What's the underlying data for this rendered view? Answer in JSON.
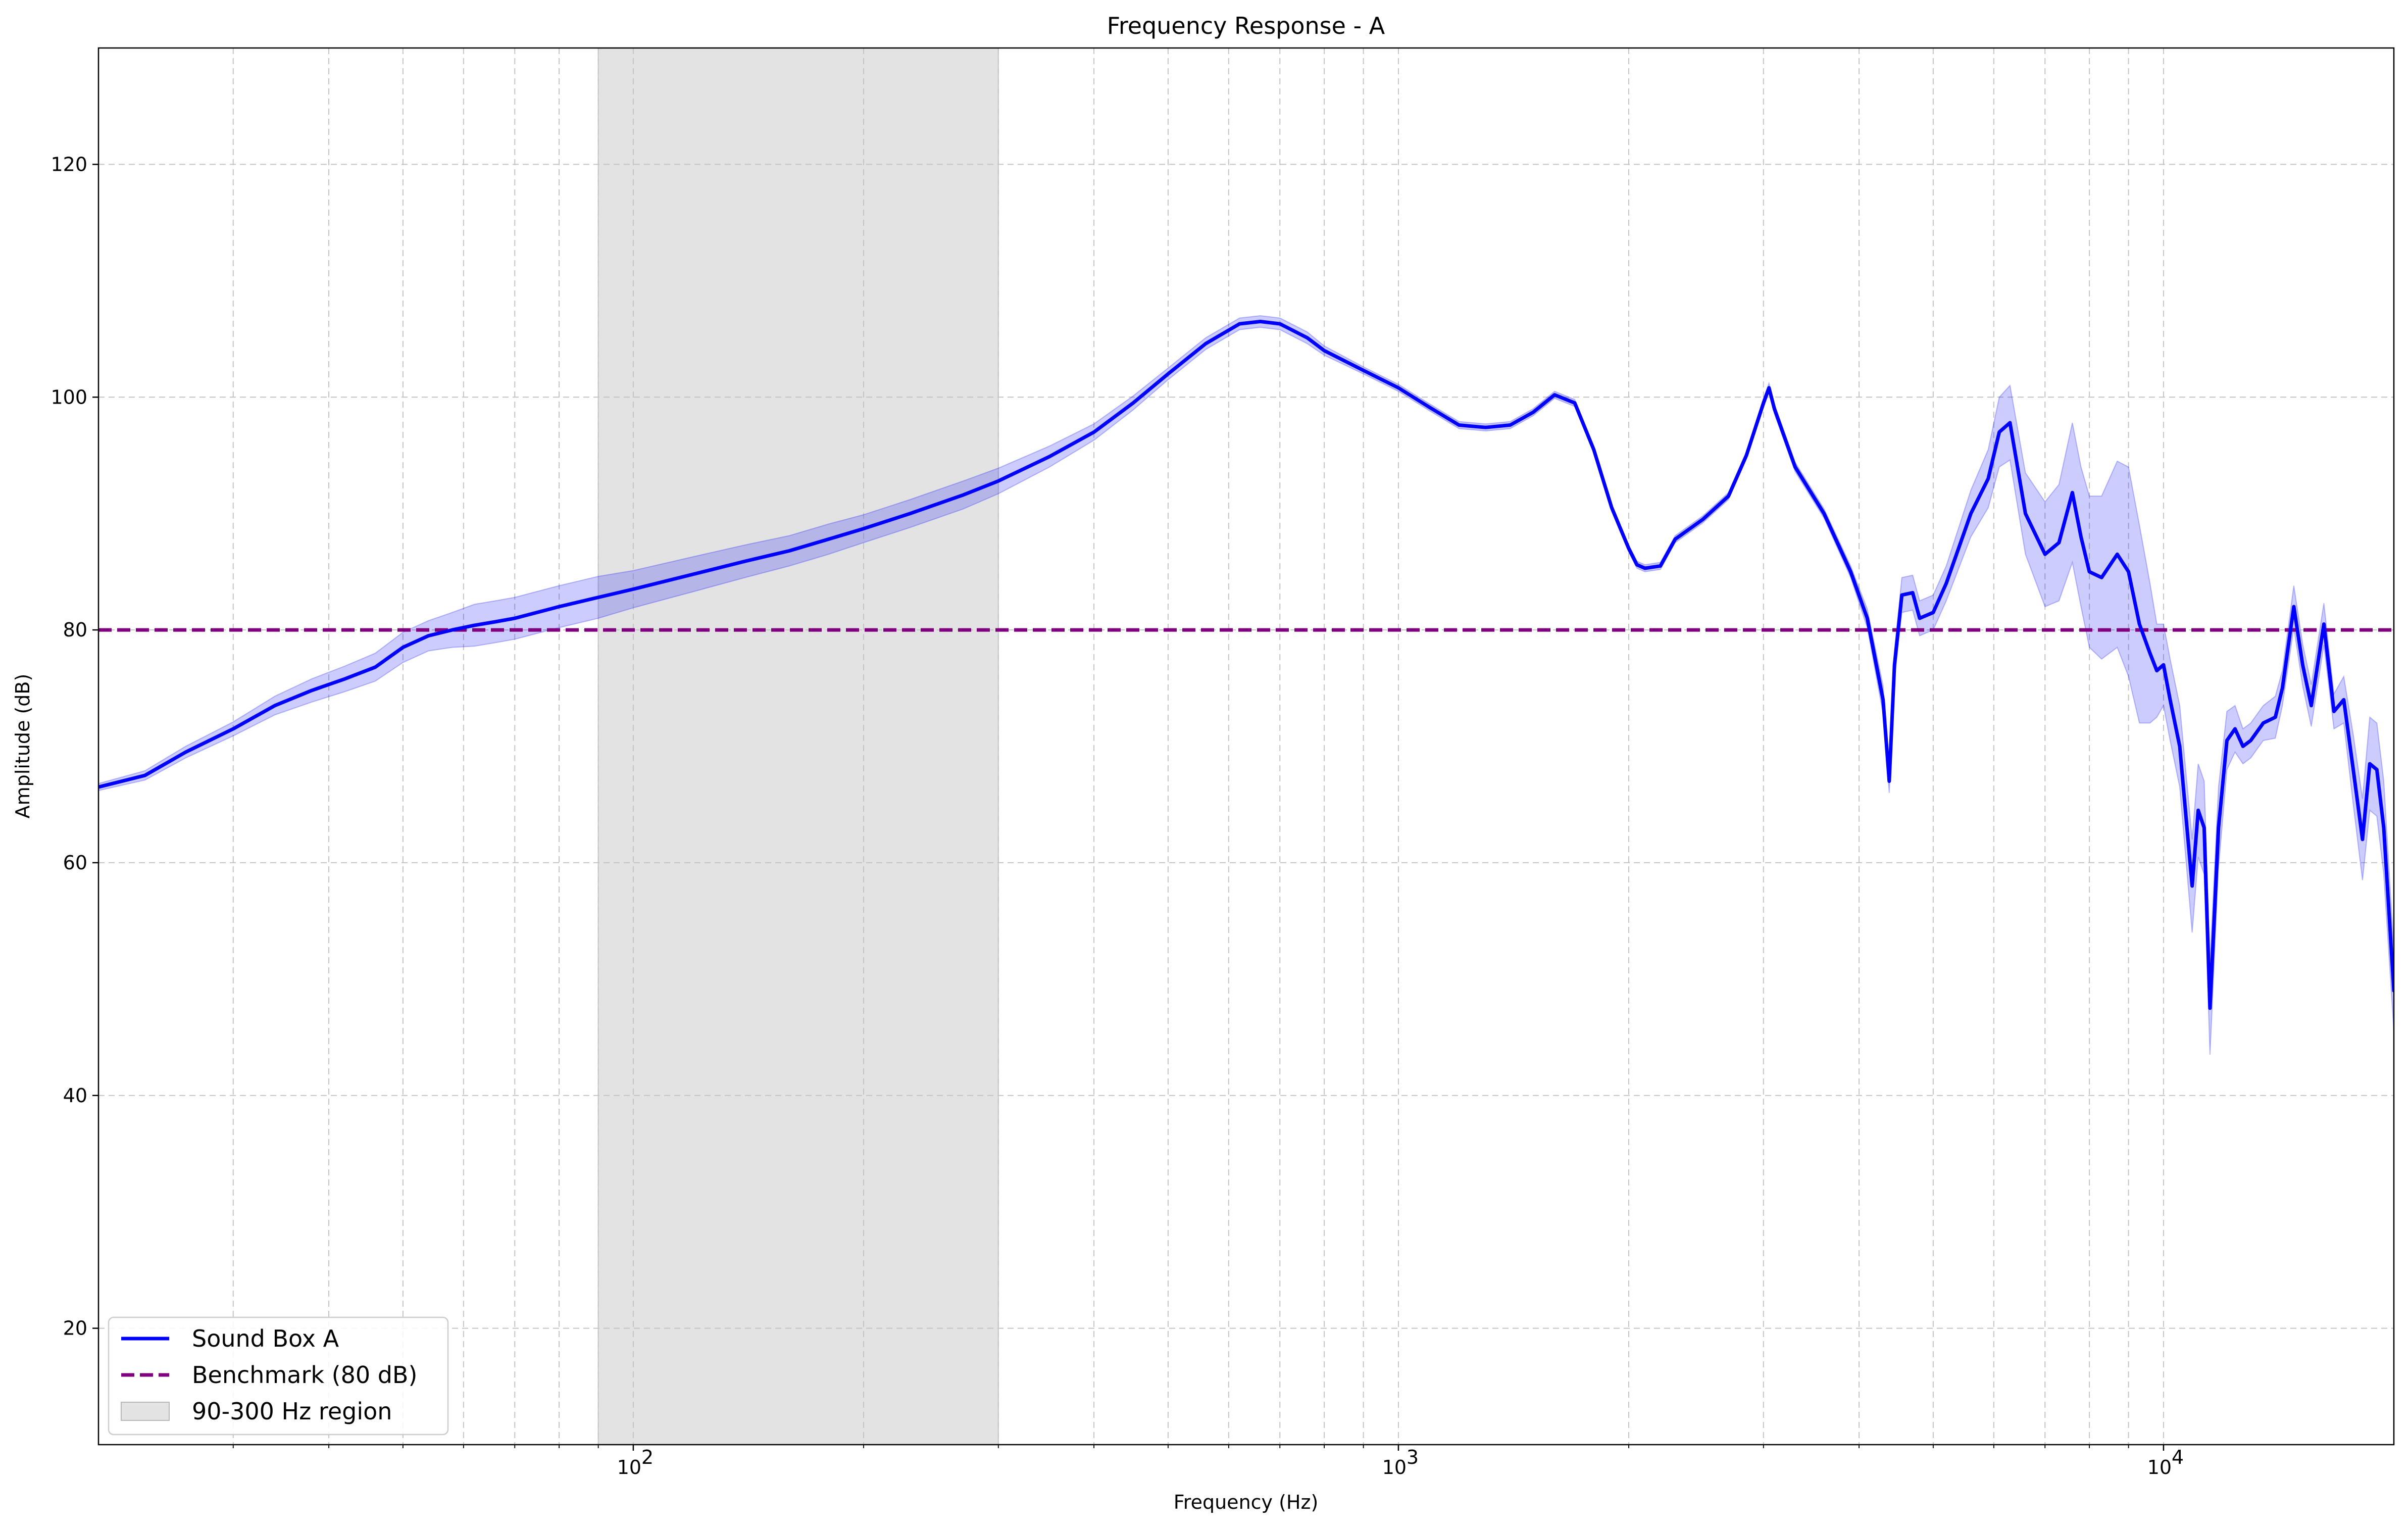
{
  "chart_data": {
    "type": "line",
    "title": "Frequency Response - A",
    "xlabel": "Frequency (Hz)",
    "ylabel": "Amplitude (dB)",
    "x_scale": "log",
    "xlim": [
      20,
      20000
    ],
    "ylim": [
      10,
      130
    ],
    "grid": true,
    "legend_position": "bottom-left",
    "x_ticks": [
      {
        "value": 100,
        "label": "10",
        "exp": "2"
      },
      {
        "value": 1000,
        "label": "10",
        "exp": "3"
      },
      {
        "value": 10000,
        "label": "10",
        "exp": "4"
      }
    ],
    "y_ticks": [
      20,
      40,
      60,
      80,
      100,
      120
    ],
    "colors": {
      "series": "#0000ff",
      "band": "#0000ff",
      "benchmark": "#800080",
      "region": "#d9d9d9"
    },
    "region": {
      "label": "90-300 Hz region",
      "x_start": 90,
      "x_end": 300
    },
    "benchmark": {
      "label": "Benchmark (80 dB)",
      "value": 80
    },
    "series": [
      {
        "name": "Sound Box A",
        "x": [
          20,
          23,
          26,
          30,
          34,
          38,
          42,
          46,
          50,
          54,
          58,
          62,
          66,
          70,
          80,
          90,
          100,
          120,
          140,
          160,
          180,
          200,
          230,
          270,
          300,
          350,
          400,
          450,
          500,
          560,
          620,
          660,
          700,
          760,
          800,
          900,
          1000,
          1100,
          1200,
          1300,
          1400,
          1500,
          1600,
          1700,
          1800,
          1900,
          2000,
          2050,
          2100,
          2200,
          2300,
          2500,
          2700,
          2850,
          3000,
          3050,
          3100,
          3300,
          3600,
          3900,
          4100,
          4300,
          4380,
          4450,
          4550,
          4700,
          4800,
          5000,
          5200,
          5600,
          5900,
          6100,
          6300,
          6600,
          7000,
          7300,
          7600,
          7800,
          8000,
          8300,
          8700,
          9000,
          9300,
          9600,
          9800,
          10000,
          10200,
          10500,
          10900,
          11100,
          11300,
          11500,
          11800,
          12100,
          12400,
          12700,
          13000,
          13500,
          14000,
          14300,
          14800,
          15200,
          15600,
          16200,
          16700,
          17200,
          17700,
          18200,
          18600,
          19000,
          19400,
          20000
        ],
        "y": [
          66.5,
          67.5,
          69.5,
          71.5,
          73.5,
          74.8,
          75.8,
          76.8,
          78.5,
          79.5,
          80.0,
          80.4,
          80.7,
          81.0,
          82.0,
          82.8,
          83.5,
          84.8,
          85.9,
          86.8,
          87.8,
          88.7,
          90.0,
          91.6,
          92.8,
          94.9,
          97.0,
          99.5,
          102.0,
          104.6,
          106.3,
          106.5,
          106.3,
          105.1,
          104.0,
          102.3,
          100.8,
          99.1,
          97.6,
          97.4,
          97.6,
          98.7,
          100.2,
          99.5,
          95.5,
          90.5,
          87.0,
          85.6,
          85.3,
          85.5,
          87.8,
          89.5,
          91.5,
          95.0,
          99.5,
          100.8,
          99.0,
          94.0,
          90.0,
          85.0,
          81.0,
          74.0,
          67.0,
          77.0,
          83.0,
          83.2,
          81.0,
          81.5,
          84.0,
          90.0,
          93.0,
          97.0,
          97.8,
          90.0,
          86.5,
          87.5,
          91.8,
          88.0,
          85.0,
          84.5,
          86.5,
          85.0,
          80.5,
          78.0,
          76.5,
          77.0,
          74.0,
          70.0,
          58.0,
          64.5,
          63.0,
          47.5,
          63.0,
          70.5,
          71.5,
          70.0,
          70.5,
          72.0,
          72.5,
          75.0,
          82.0,
          77.0,
          73.5,
          80.5,
          73.0,
          74.0,
          68.0,
          62.0,
          68.5,
          68.0,
          63.0,
          49.0
        ],
        "band_half_width": [
          0.3,
          0.4,
          0.5,
          0.6,
          0.8,
          1.0,
          1.1,
          1.2,
          1.3,
          1.3,
          1.5,
          1.8,
          1.8,
          1.8,
          1.8,
          1.8,
          1.6,
          1.5,
          1.4,
          1.3,
          1.3,
          1.2,
          1.2,
          1.2,
          1.1,
          0.9,
          0.7,
          0.6,
          0.5,
          0.5,
          0.5,
          0.5,
          0.5,
          0.5,
          0.4,
          0.3,
          0.3,
          0.3,
          0.3,
          0.3,
          0.3,
          0.3,
          0.3,
          0.3,
          0.3,
          0.3,
          0.3,
          0.3,
          0.3,
          0.3,
          0.3,
          0.3,
          0.3,
          0.3,
          0.4,
          0.4,
          0.4,
          0.4,
          0.4,
          0.5,
          0.8,
          1.2,
          1.0,
          1.2,
          1.5,
          1.5,
          1.5,
          1.5,
          1.5,
          2.0,
          2.5,
          3.0,
          3.2,
          3.5,
          4.5,
          5.0,
          6.0,
          6.0,
          6.5,
          7.0,
          8.0,
          9.0,
          8.5,
          6.0,
          4.0,
          3.5,
          3.5,
          3.5,
          4.0,
          4.0,
          4.0,
          4.0,
          3.5,
          2.5,
          2.0,
          1.5,
          1.5,
          1.5,
          1.8,
          1.5,
          1.8,
          1.8,
          1.8,
          1.8,
          1.5,
          2.0,
          3.0,
          3.5,
          4.0,
          4.0,
          4.0,
          3.5
        ]
      }
    ],
    "legend": [
      {
        "label": "Sound Box A",
        "kind": "line"
      },
      {
        "label": "Benchmark (80 dB)",
        "kind": "dashed"
      },
      {
        "label": "90-300 Hz region",
        "kind": "patch"
      }
    ]
  }
}
